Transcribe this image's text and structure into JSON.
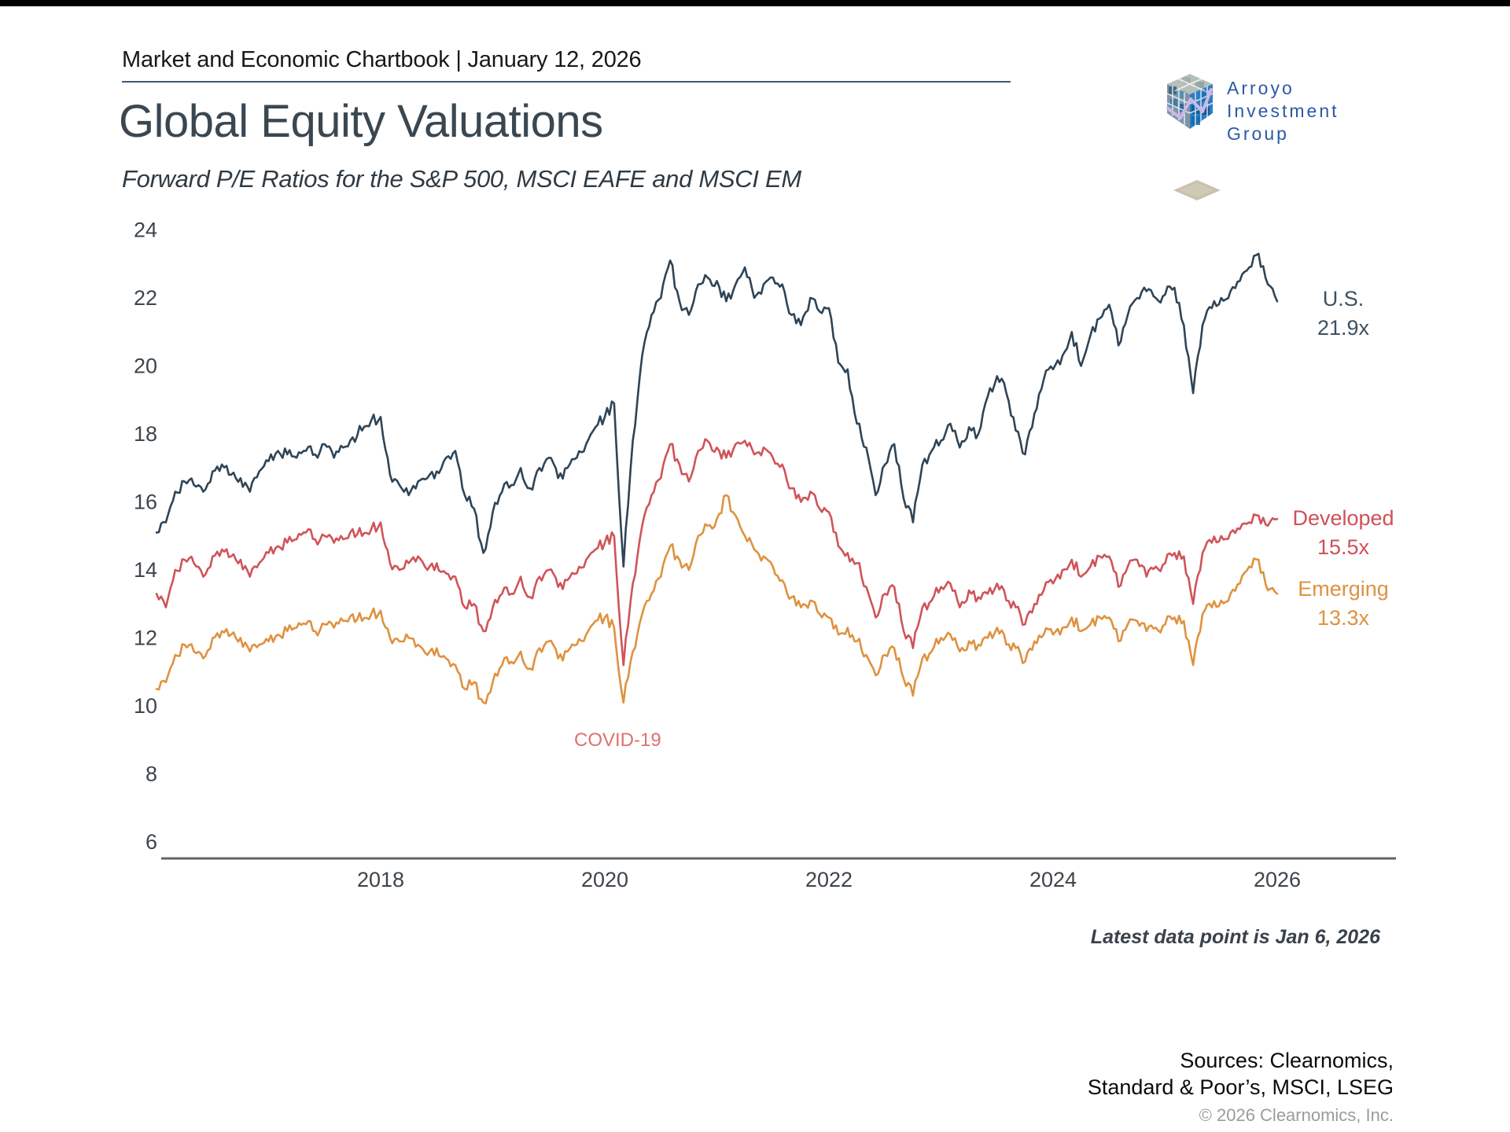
{
  "header": {
    "chartbook_label": "Market and Economic Chartbook | January 12, 2026",
    "logo_line1": "Arroyo",
    "logo_line2": "Investment Group"
  },
  "title": "Global Equity Valuations",
  "subtitle": "Forward P/E Ratios for the S&P 500, MSCI EAFE and MSCI EM",
  "annotations": {
    "covid": "COVID-19",
    "latest": "Latest data point is Jan 6, 2026"
  },
  "footer": {
    "sources_line1": "Sources: Clearnomics,",
    "sources_line2": "Standard & Poor’s, MSCI, LSEG",
    "copyright": "© 2026 Clearnomics, Inc."
  },
  "chart_data": {
    "type": "line",
    "title": "Global Equity Valuations",
    "subtitle": "Forward P/E Ratios for the S&P 500, MSCI EAFE and MSCI EM",
    "x_start_year": 2016,
    "frequency": "monthly",
    "x_tick_labels": [
      "2018",
      "2020",
      "2022",
      "2024",
      "2026"
    ],
    "y_ticks": [
      6,
      8,
      10,
      12,
      14,
      16,
      18,
      20,
      22,
      24
    ],
    "ylim": [
      5.5,
      24.6
    ],
    "grid": false,
    "legend_position": "right-end-labels",
    "series": [
      {
        "name": "U.S.",
        "label_value": "21.9x",
        "color": "#2f4456",
        "values": [
          15.1,
          15.4,
          16.3,
          16.6,
          16.5,
          16.3,
          16.9,
          17.1,
          16.8,
          16.7,
          16.3,
          16.9,
          17.2,
          17.5,
          17.4,
          17.3,
          17.5,
          17.4,
          17.7,
          17.3,
          17.6,
          17.9,
          18.1,
          18.4,
          18.5,
          16.8,
          16.5,
          16.2,
          16.6,
          16.7,
          16.9,
          17.3,
          17.5,
          16.2,
          15.8,
          14.5,
          15.7,
          16.3,
          16.5,
          17.0,
          16.4,
          17.0,
          17.3,
          16.7,
          17.0,
          17.3,
          17.7,
          18.2,
          18.5,
          18.9,
          14.1,
          17.8,
          20.3,
          21.5,
          22.0,
          23.1,
          21.9,
          21.5,
          22.4,
          22.6,
          22.5,
          21.9,
          22.4,
          22.9,
          22.0,
          22.4,
          22.6,
          22.4,
          21.5,
          21.2,
          22.0,
          21.6,
          21.7,
          20.1,
          19.9,
          18.3,
          17.6,
          16.2,
          17.1,
          17.7,
          16.1,
          15.4,
          17.1,
          17.5,
          17.8,
          18.3,
          17.6,
          18.2,
          18.0,
          19.1,
          19.7,
          19.2,
          18.1,
          17.4,
          18.6,
          19.6,
          19.9,
          20.3,
          21.0,
          20.0,
          20.9,
          21.4,
          21.8,
          20.6,
          21.5,
          22.0,
          22.2,
          22.0,
          22.1,
          22.3,
          21.2,
          19.2,
          21.2,
          21.7,
          22.0,
          22.2,
          22.5,
          22.9,
          23.3,
          22.4,
          21.9
        ]
      },
      {
        "name": "Developed",
        "label_value": "15.5x",
        "color": "#cf5459",
        "values": [
          13.3,
          12.9,
          14.0,
          14.3,
          14.2,
          13.8,
          14.4,
          14.6,
          14.4,
          14.3,
          13.8,
          14.2,
          14.5,
          14.7,
          14.8,
          14.9,
          15.1,
          14.9,
          15.0,
          14.8,
          14.9,
          15.2,
          15.0,
          15.2,
          15.4,
          14.2,
          14.0,
          14.2,
          14.4,
          14.0,
          14.2,
          13.9,
          13.8,
          12.9,
          13.0,
          12.2,
          12.9,
          13.3,
          13.3,
          13.8,
          13.2,
          13.8,
          14.0,
          13.5,
          13.7,
          13.9,
          14.3,
          14.6,
          14.8,
          15.0,
          11.2,
          13.6,
          15.3,
          16.2,
          16.7,
          17.7,
          17.1,
          16.6,
          17.5,
          17.8,
          17.6,
          17.3,
          17.7,
          17.8,
          17.4,
          17.6,
          17.3,
          17.1,
          16.4,
          16.0,
          16.3,
          15.8,
          15.7,
          14.7,
          14.5,
          14.2,
          13.5,
          12.6,
          13.3,
          13.5,
          12.2,
          11.7,
          12.9,
          13.1,
          13.5,
          13.6,
          12.9,
          13.4,
          13.2,
          13.3,
          13.6,
          13.1,
          12.9,
          12.4,
          13.0,
          13.4,
          13.6,
          14.0,
          14.3,
          13.8,
          14.1,
          14.4,
          14.4,
          13.5,
          14.1,
          14.3,
          13.8,
          14.1,
          14.2,
          14.5,
          14.4,
          13.0,
          14.5,
          14.8,
          15.0,
          15.1,
          15.2,
          15.4,
          15.6,
          15.3,
          15.5
        ]
      },
      {
        "name": "Emerging",
        "label_value": "13.3x",
        "color": "#de9240",
        "values": [
          10.5,
          10.7,
          11.5,
          11.8,
          11.6,
          11.4,
          12.0,
          12.2,
          12.1,
          12.0,
          11.6,
          11.8,
          11.9,
          12.1,
          12.2,
          12.3,
          12.4,
          12.2,
          12.4,
          12.3,
          12.5,
          12.7,
          12.5,
          12.7,
          12.8,
          12.0,
          11.9,
          12.0,
          11.8,
          11.5,
          11.7,
          11.4,
          11.2,
          10.5,
          10.7,
          10.1,
          10.7,
          11.2,
          11.3,
          11.6,
          11.1,
          11.7,
          11.9,
          11.4,
          11.6,
          11.8,
          12.1,
          12.5,
          12.6,
          12.3,
          10.1,
          11.6,
          12.7,
          13.3,
          13.8,
          14.7,
          14.3,
          14.0,
          15.0,
          15.3,
          15.5,
          16.2,
          15.6,
          15.0,
          14.6,
          14.4,
          14.1,
          13.7,
          13.2,
          12.9,
          13.1,
          12.7,
          12.6,
          12.1,
          12.3,
          11.9,
          11.5,
          10.9,
          11.5,
          11.7,
          10.8,
          10.3,
          11.4,
          11.6,
          12.0,
          12.1,
          11.6,
          11.9,
          11.8,
          12.0,
          12.3,
          11.8,
          11.7,
          11.3,
          11.9,
          12.1,
          12.1,
          12.3,
          12.6,
          12.2,
          12.4,
          12.6,
          12.6,
          11.9,
          12.4,
          12.5,
          12.2,
          12.3,
          12.4,
          12.6,
          12.5,
          11.2,
          12.7,
          12.9,
          13.1,
          13.3,
          13.6,
          14.1,
          14.3,
          13.4,
          13.3
        ]
      }
    ]
  }
}
